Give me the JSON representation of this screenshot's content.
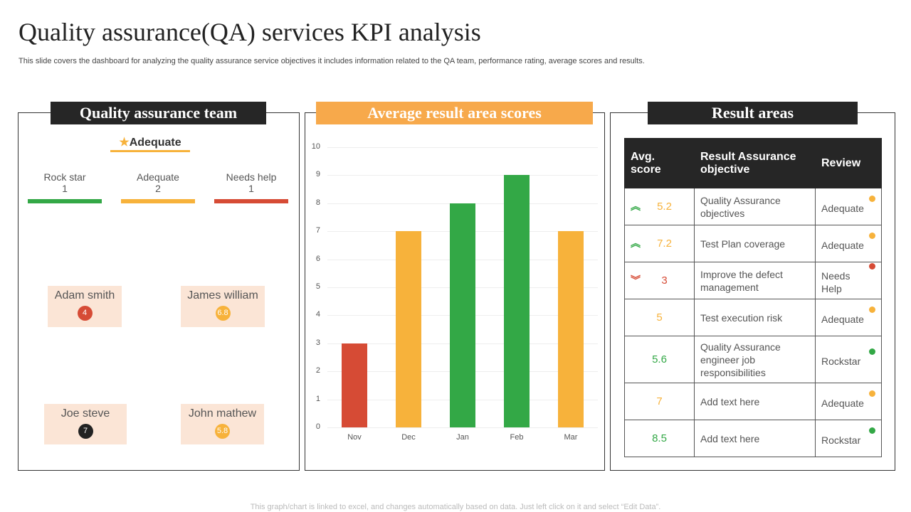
{
  "title": "Quality assurance(QA) services KPI analysis",
  "subtitle": "This slide covers the dashboard for analyzing the quality assurance service objectives it includes information related to the QA  team, performance rating, average scores and results.",
  "colors": {
    "green": "#33a846",
    "orange": "#f7b23b",
    "red": "#d64b35",
    "dark": "#262626",
    "header_orange": "#f7a94b"
  },
  "team": {
    "heading": "Quality assurance team",
    "rating_label": "Adequate",
    "rating_icon": "star-icon",
    "categories": [
      {
        "label": "Rock star",
        "count": "1",
        "color": "#33a846"
      },
      {
        "label": "Adequate",
        "count": "2",
        "color": "#f7b23b"
      },
      {
        "label": "Needs help",
        "count": "1",
        "color": "#d64b35"
      }
    ],
    "members": [
      {
        "name": "Adam smith",
        "score": "4",
        "color": "#d64b35"
      },
      {
        "name": "James william",
        "score": "6.8",
        "color": "#f7b23b"
      },
      {
        "name": "Joe steve",
        "score": "7",
        "color": "#222222"
      },
      {
        "name": "John mathew",
        "score": "5.8",
        "color": "#f7b23b"
      }
    ]
  },
  "chart_heading": "Average result area scores",
  "chart_data": {
    "type": "bar",
    "categories": [
      "Nov",
      "Dec",
      "Jan",
      "Feb",
      "Mar"
    ],
    "values": [
      3,
      7,
      8,
      9,
      7
    ],
    "colors": [
      "#d64b35",
      "#f7b23b",
      "#33a846",
      "#33a846",
      "#f7b23b"
    ],
    "ylim": [
      0,
      10
    ],
    "yticks": [
      "0",
      "1",
      "2",
      "3",
      "4",
      "5",
      "6",
      "7",
      "8",
      "9",
      "10"
    ],
    "grid": true
  },
  "results": {
    "heading": "Result areas",
    "columns": [
      "Avg. score",
      "Result Assurance objective",
      "Review"
    ],
    "rows": [
      {
        "trend": "up",
        "score": "5.2",
        "score_color": "#f7b23b",
        "objective": "Quality Assurance objectives",
        "review": "Adequate",
        "dot": "#f7b23b"
      },
      {
        "trend": "up",
        "score": "7.2",
        "score_color": "#f7b23b",
        "objective": "Test Plan coverage",
        "review": "Adequate",
        "dot": "#f7b23b"
      },
      {
        "trend": "down",
        "score": "3",
        "score_color": "#d64b35",
        "objective": "Improve the defect management",
        "review": "Needs Help",
        "dot": "#d64b35"
      },
      {
        "trend": "",
        "score": "5",
        "score_color": "#f7b23b",
        "objective": "Test execution risk",
        "review": "Adequate",
        "dot": "#f7b23b"
      },
      {
        "trend": "",
        "score": "5.6",
        "score_color": "#33a846",
        "objective": "Quality Assurance engineer job responsibilities",
        "review": "Rockstar",
        "dot": "#33a846"
      },
      {
        "trend": "",
        "score": "7",
        "score_color": "#f7b23b",
        "objective": "Add text here",
        "review": "Adequate",
        "dot": "#f7b23b"
      },
      {
        "trend": "",
        "score": "8.5",
        "score_color": "#33a846",
        "objective": "Add text here",
        "review": "Rockstar",
        "dot": "#33a846"
      }
    ]
  },
  "footer": "This graph/chart is linked to excel,  and changes automatically based on data. Just left click on it and select “Edit Data”."
}
